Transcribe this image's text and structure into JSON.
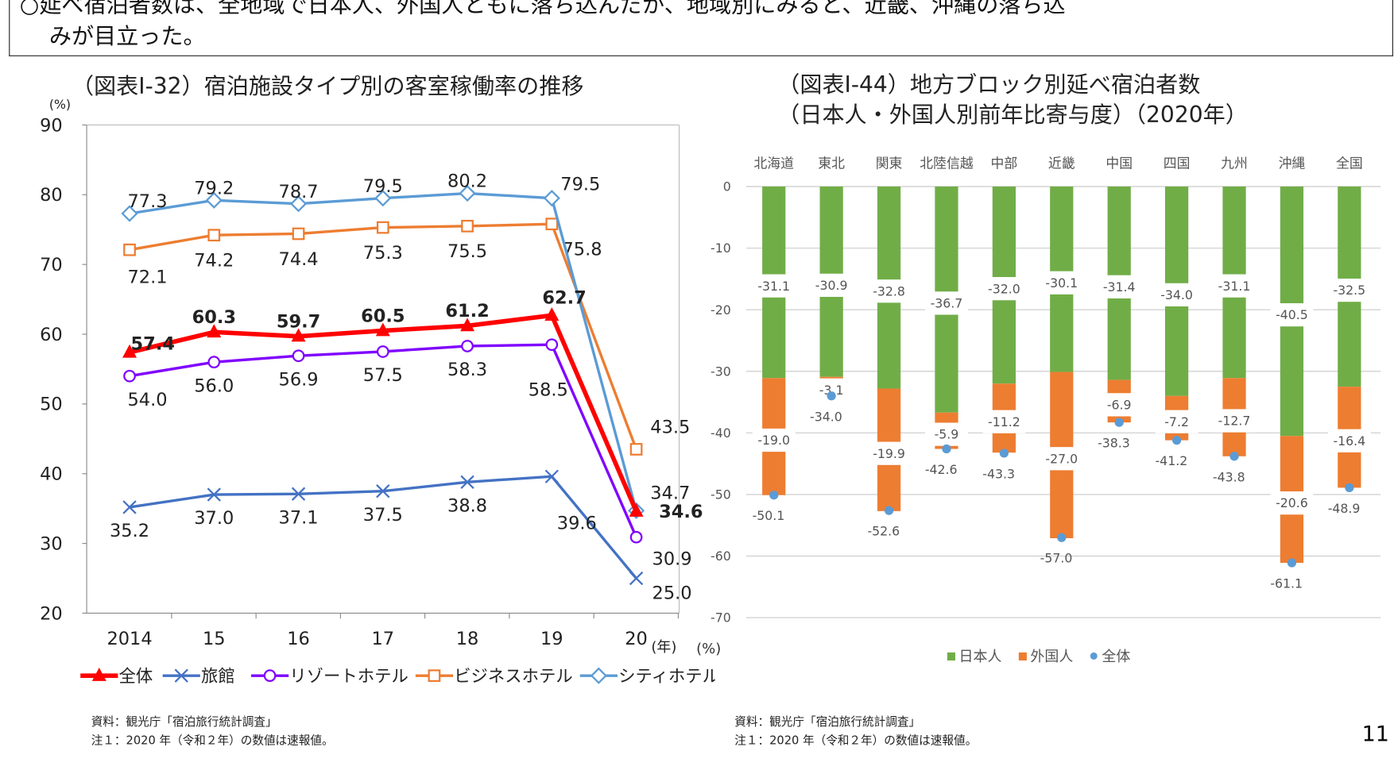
{
  "lead_text": {
    "line1": "○延べ宿泊者数は、全地域で日本人、外国人ともに落ち込んだが、地域別にみると、近畿、沖縄の落ち込",
    "line2": "みが目立った。"
  },
  "page_number": "11",
  "chart_data": [
    {
      "type": "line",
      "title": "（図表Ⅰ-32）宿泊施設タイプ別の客室稼働率の推移",
      "ylabel": "(%)",
      "xlabel": "(年)",
      "categories": [
        "2014",
        "15",
        "16",
        "17",
        "18",
        "19",
        "20"
      ],
      "ylim": [
        20,
        90
      ],
      "yticks": [
        "90",
        "80",
        "70",
        "60",
        "50",
        "40",
        "30",
        "20"
      ],
      "grid": false,
      "legend_position": "bottom",
      "series": [
        {
          "name": "全体",
          "color": "#ff0000",
          "marker": "triangle",
          "bold_labels": true,
          "values": [
            57.4,
            60.3,
            59.7,
            60.5,
            61.2,
            62.7,
            34.6
          ],
          "labels": [
            "57.4",
            "60.3",
            "59.7",
            "60.5",
            "61.2",
            "62.7",
            "34.6"
          ]
        },
        {
          "name": "旅館",
          "color": "#4472c4",
          "marker": "x",
          "values": [
            35.2,
            37.0,
            37.1,
            37.5,
            38.8,
            39.6,
            25.0
          ],
          "labels": [
            "35.2",
            "37.0",
            "37.1",
            "37.5",
            "38.8",
            "39.6",
            "25.0"
          ]
        },
        {
          "name": "リゾートホテル",
          "color": "#7f00ff",
          "marker": "circle",
          "values": [
            54.0,
            56.0,
            56.9,
            57.5,
            58.3,
            58.5,
            30.9
          ],
          "labels": [
            "54.0",
            "56.0",
            "56.9",
            "57.5",
            "58.3",
            "58.5",
            "30.9"
          ]
        },
        {
          "name": "ビジネスホテル",
          "color": "#ed7d31",
          "marker": "square",
          "values": [
            72.1,
            74.2,
            74.4,
            75.3,
            75.5,
            75.8,
            43.5
          ],
          "labels": [
            "72.1",
            "74.2",
            "74.4",
            "75.3",
            "75.5",
            "75.8",
            "43.5"
          ]
        },
        {
          "name": "シティホテル",
          "color": "#5b9bd5",
          "marker": "diamond",
          "values": [
            77.3,
            79.2,
            78.7,
            79.5,
            80.2,
            79.5,
            34.7
          ],
          "labels": [
            "77.3",
            "79.2",
            "78.7",
            "79.5",
            "80.2",
            "79.5",
            "34.7"
          ]
        }
      ],
      "source": "資料：観光庁「宿泊旅行統計調査」",
      "note": "注１：2020 年（令和２年）の数値は速報値。"
    },
    {
      "type": "bar",
      "stacked": true,
      "title": "（図表Ⅰ-44）地方ブロック別延べ宿泊者数",
      "subtitle": "（日本人・外国人別前年比寄与度）（2020年）",
      "ylabel": "(%)",
      "categories": [
        "北海道",
        "東北",
        "関東",
        "北陸信越",
        "中部",
        "近畿",
        "中国",
        "四国",
        "九州",
        "沖縄",
        "全国"
      ],
      "ylim": [
        -70,
        0
      ],
      "yticks": [
        "0",
        "-10",
        "-20",
        "-30",
        "-40",
        "-50",
        "-60",
        "-70"
      ],
      "grid": true,
      "legend_position": "bottom",
      "series": [
        {
          "name": "日本人",
          "color": "#70ad47",
          "values": [
            -31.1,
            -30.9,
            -32.8,
            -36.7,
            -32.0,
            -30.1,
            -31.4,
            -34.0,
            -31.1,
            -40.5,
            -32.5
          ],
          "labels": [
            "-31.1",
            "-30.9",
            "-32.8",
            "-36.7",
            "-32.0",
            "-30.1",
            "-31.4",
            "-34.0",
            "-31.1",
            "-40.5",
            "-32.5"
          ]
        },
        {
          "name": "外国人",
          "color": "#ed7d31",
          "values": [
            -19.0,
            -3.1,
            -19.9,
            -5.9,
            -11.2,
            -27.0,
            -6.9,
            -7.2,
            -12.7,
            -20.6,
            -16.4
          ],
          "labels": [
            "-19.0",
            "-3.1",
            "-19.9",
            "-5.9",
            "-11.2",
            "-27.0",
            "-6.9",
            "-7.2",
            "-12.7",
            "-20.6",
            "-16.4"
          ]
        },
        {
          "name": "全体",
          "color": "#5b9bd5",
          "type": "point",
          "values": [
            -50.1,
            -34.0,
            -52.6,
            -42.6,
            -43.3,
            -57.0,
            -38.3,
            -41.2,
            -43.8,
            -61.1,
            -48.9
          ],
          "labels": [
            "-50.1",
            "-34.0",
            "-52.6",
            "-42.6",
            "-43.3",
            "-57.0",
            "-38.3",
            "-41.2",
            "-43.8",
            "-61.1",
            "-48.9"
          ]
        }
      ],
      "source": "資料：観光庁「宿泊旅行統計調査」",
      "note": "注１：2020 年（令和２年）の数値は速報値。"
    }
  ]
}
